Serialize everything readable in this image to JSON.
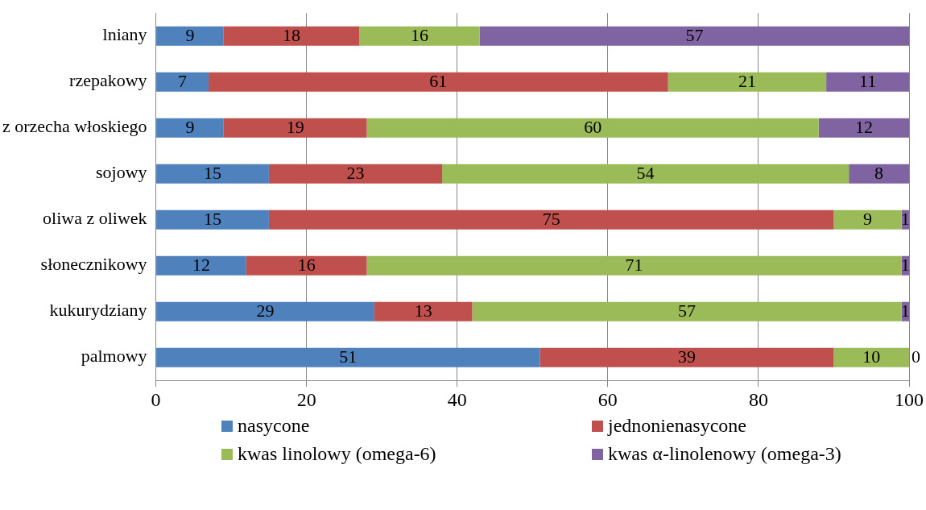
{
  "chart_data": {
    "type": "bar",
    "orientation": "horizontal",
    "stacked": true,
    "categories": [
      "lniany",
      "rzepakowy",
      "z orzecha włoskiego",
      "sojowy",
      "oliwa z oliwek",
      "słonecznikowy",
      "kukurydziany",
      "palmowy"
    ],
    "series": [
      {
        "name": "nasycone",
        "color": "#4f81bd",
        "values": [
          9,
          7,
          9,
          15,
          15,
          12,
          29,
          51
        ]
      },
      {
        "name": "jednonienasycone",
        "color": "#c0504d",
        "values": [
          18,
          61,
          19,
          23,
          75,
          16,
          13,
          39
        ]
      },
      {
        "name": "kwas linolowy (omega-6)",
        "color": "#9bbb59",
        "values": [
          16,
          21,
          60,
          54,
          9,
          71,
          57,
          10
        ]
      },
      {
        "name": "kwas α-linolenowy (omega-3)",
        "color": "#8064a2",
        "values": [
          57,
          11,
          12,
          8,
          1,
          1,
          1,
          0
        ]
      }
    ],
    "xlim": [
      0,
      100
    ],
    "xticks": [
      0,
      20,
      40,
      60,
      80,
      100
    ],
    "grid": "x",
    "legend": "bottom",
    "data_labels": true
  }
}
